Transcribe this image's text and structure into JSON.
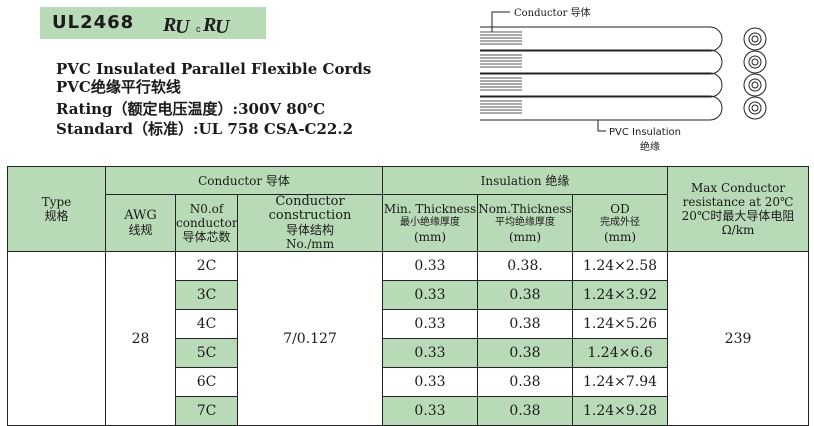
{
  "header": {
    "model": "UL2468",
    "certification_mark": "cURus",
    "title_en": "PVC Insulated Parallel Flexible Cords",
    "title_cn": "PVC绝缘平行软线",
    "rating": "Rating（额定电压温度）:300V  80℃",
    "standard": "Standard（标准）:UL 758  CSA-C22.2"
  },
  "diagram": {
    "conductor_label": "Conductor 导体",
    "insulation_label": "PVC Insulation",
    "insulation_label_cn": "绝缘"
  },
  "table": {
    "headers": {
      "type": "Type",
      "type_cn": "规格",
      "conductor": "Conductor 导体",
      "insulation": "Insulation 绝缘",
      "max_resistance": "Max Conductor resistance at 20℃",
      "max_resistance_cn": "20℃时最大导体电阻",
      "max_resistance_unit": "Ω/km",
      "awg": "AWG",
      "awg_cn": "线规",
      "no_conductor": "N0.of conductor",
      "no_conductor_cn": "导体芯数",
      "construction": "Conductor construction",
      "construction_cn": "导体结构",
      "construction_unit": "No./mm",
      "min_thickness": "Min. Thickness",
      "min_thickness_cn": "最小绝缘厚度",
      "min_thickness_unit": "(mm)",
      "nom_thickness": "Nom.Thickness",
      "nom_thickness_cn": "平均绝缘厚度",
      "nom_thickness_unit": "(mm)",
      "od": "OD",
      "od_cn": "完成外径",
      "od_unit": "(mm)"
    },
    "awg_value": "28",
    "construction_value": "7/0.127",
    "resistance_value": "239",
    "rows": [
      {
        "cores": "2C",
        "min": "0.33",
        "nom": "0.38.",
        "od": "1.24×2.58"
      },
      {
        "cores": "3C",
        "min": "0.33",
        "nom": "0.38",
        "od": "1.24×3.92"
      },
      {
        "cores": "4C",
        "min": "0.33",
        "nom": "0.38",
        "od": "1.24×5.26"
      },
      {
        "cores": "5C",
        "min": "0.33",
        "nom": "0.38",
        "od": "1.24×6.6"
      },
      {
        "cores": "6C",
        "min": "0.33",
        "nom": "0.38",
        "od": "1.24×7.94"
      },
      {
        "cores": "7C",
        "min": "0.33",
        "nom": "0.38",
        "od": "1.24×9.28"
      }
    ]
  }
}
